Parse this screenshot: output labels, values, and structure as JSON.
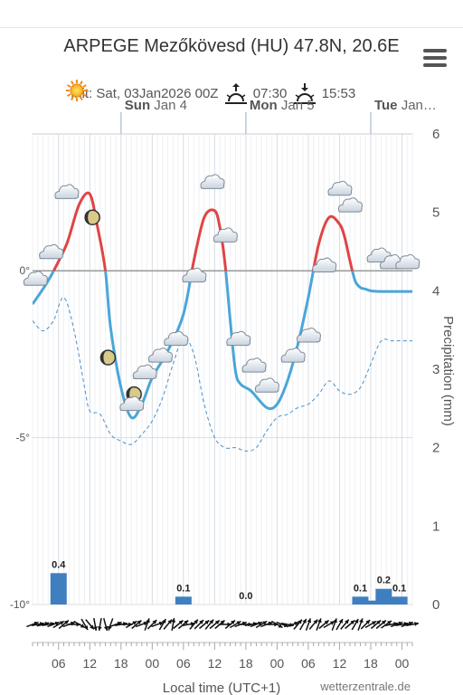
{
  "header": {
    "title": "ARPEGE Mezőkövesd (HU) 47.8N, 20.6E",
    "init": "Init: Sat, 03Jan2026 00Z",
    "sunrise": "07:30",
    "sunset": "15:53"
  },
  "footer": {
    "xlabel": "Local time (UTC+1)",
    "credit": "wetterzentrale.de"
  },
  "chart_data": {
    "type": "line",
    "title": "ARPEGE Mezőkövesd (HU) 47.8N, 20.6E",
    "xlabel": "Local time (UTC+1)",
    "ylabel_right": "Precipitation (mm)",
    "x_tick_labels": [
      "06",
      "12",
      "18",
      "00",
      "06",
      "12",
      "18",
      "00",
      "06",
      "12",
      "18",
      "00"
    ],
    "x_ticks_hours": [
      6,
      12,
      18,
      24,
      30,
      36,
      42,
      48,
      54,
      60,
      66,
      72
    ],
    "xlim_hours": [
      1,
      74
    ],
    "day_labels": [
      {
        "hour": 18,
        "bold": "Sun",
        "rest": "Jan 4"
      },
      {
        "hour": 42,
        "bold": "Mon",
        "rest": "Jan 5"
      },
      {
        "hour": 66,
        "bold": "Tue",
        "rest": "Jan…"
      }
    ],
    "y_left_ticks": [
      {
        "value": 0,
        "label": "0°"
      },
      {
        "value": -5,
        "label": "-5°"
      },
      {
        "value": -10,
        "label": "-10°"
      }
    ],
    "ylim_left": [
      -10,
      4.1
    ],
    "y_right_ticks": [
      "6",
      "5",
      "4",
      "3",
      "2",
      "1",
      "0"
    ],
    "ylim_right": [
      0,
      6
    ],
    "grid": true,
    "series": [
      {
        "kind": "temperature",
        "color_warm": "#e04444",
        "color_cold": "#4aa6d8",
        "x": [
          1,
          4,
          7,
          8,
          10,
          12,
          13.5,
          15,
          16,
          18,
          20,
          22,
          24,
          27,
          30,
          32,
          34,
          36,
          37,
          38,
          39,
          40,
          41,
          43,
          46,
          48,
          50,
          52,
          54,
          56,
          58,
          60,
          61,
          62,
          63,
          64,
          65,
          66,
          68,
          71,
          74
        ],
        "y": [
          -1,
          -0.3,
          0.6,
          1.0,
          2.0,
          2.3,
          1.3,
          0,
          -1.7,
          -3.5,
          -4.4,
          -4.0,
          -3.2,
          -2.4,
          -1.3,
          0.3,
          1.6,
          1.8,
          1.3,
          0.2,
          -1.5,
          -3.0,
          -3.4,
          -3.6,
          -4.1,
          -4.0,
          -3.3,
          -2.2,
          -0.8,
          0.8,
          1.6,
          1.4,
          1.0,
          0.3,
          -0.3,
          -0.5,
          -0.55,
          -0.6,
          -0.62,
          -0.62,
          -0.62
        ]
      },
      {
        "kind": "dewpoint",
        "color": "#4a8fc7",
        "x": [
          1,
          3,
          5,
          7,
          9,
          11,
          12,
          14,
          16,
          18,
          20,
          22,
          24,
          26,
          28,
          30,
          32,
          34,
          36,
          38,
          40,
          42,
          44,
          46,
          48,
          50,
          52,
          54,
          56,
          58,
          60,
          62,
          64,
          66,
          68,
          70,
          71,
          74
        ],
        "y": [
          -1.5,
          -1.8,
          -1.5,
          -0.8,
          -1.8,
          -3.5,
          -4.2,
          -4.3,
          -4.9,
          -5.1,
          -5.2,
          -4.9,
          -4.5,
          -3.8,
          -2.8,
          -2.0,
          -2.5,
          -4.0,
          -5.0,
          -5.3,
          -5.3,
          -5.4,
          -5.3,
          -4.8,
          -4.4,
          -4.3,
          -4.1,
          -4.0,
          -3.7,
          -3.3,
          -3.6,
          -3.7,
          -3.5,
          -2.8,
          -2.1,
          -2.1,
          -2.1,
          -2.1
        ]
      }
    ],
    "precipitation": [
      {
        "hour": 6,
        "value": 0.4,
        "label": "0.4"
      },
      {
        "hour": 30,
        "value": 0.1,
        "label": "0.1"
      },
      {
        "hour": 42,
        "value": 0.0,
        "label": "0.0"
      },
      {
        "hour": 64,
        "value": 0.1,
        "label": "0.1"
      },
      {
        "hour": 66,
        "value": 0.05
      },
      {
        "hour": 68.5,
        "value": 0.2,
        "label": "0.2"
      },
      {
        "hour": 71.5,
        "value": 0.1,
        "label": "0.1"
      }
    ],
    "icons": [
      {
        "hour": 1.5,
        "temp": -0.3,
        "icon": "cloud-icon"
      },
      {
        "hour": 4.5,
        "temp": 0.5,
        "icon": "cloud-icon"
      },
      {
        "hour": 7.5,
        "temp": 2.3,
        "icon": "cloud-icon"
      },
      {
        "hour": 9.5,
        "temp": 5.4,
        "icon": "sun-icon"
      },
      {
        "hour": 12.5,
        "temp": 1.6,
        "icon": "moon-icon"
      },
      {
        "hour": 15.5,
        "temp": -2.6,
        "icon": "moon-icon"
      },
      {
        "hour": 20.5,
        "temp": -3.7,
        "icon": "moon-icon"
      },
      {
        "hour": 20.0,
        "temp": -4.05,
        "icon": "cloud-icon"
      },
      {
        "hour": 22.5,
        "temp": -3.1,
        "icon": "cloud-icon"
      },
      {
        "hour": 25.5,
        "temp": -2.6,
        "icon": "cloud-icon"
      },
      {
        "hour": 28.5,
        "temp": -2.1,
        "icon": "cloud-icon"
      },
      {
        "hour": 32.0,
        "temp": -0.2,
        "icon": "cloud-icon"
      },
      {
        "hour": 35.5,
        "temp": 2.6,
        "icon": "cloud-icon"
      },
      {
        "hour": 38.0,
        "temp": 1.0,
        "icon": "cloud-icon"
      },
      {
        "hour": 40.5,
        "temp": -2.1,
        "icon": "cloud-icon"
      },
      {
        "hour": 43.5,
        "temp": -2.9,
        "icon": "cloud-icon"
      },
      {
        "hour": 46.0,
        "temp": -3.5,
        "icon": "cloud-icon"
      },
      {
        "hour": 51.0,
        "temp": -2.6,
        "icon": "cloud-icon"
      },
      {
        "hour": 54.0,
        "temp": -2.0,
        "icon": "cloud-icon"
      },
      {
        "hour": 57.0,
        "temp": 0.1,
        "icon": "cloud-icon"
      },
      {
        "hour": 60.0,
        "temp": 2.4,
        "icon": "cloud-icon"
      },
      {
        "hour": 62.0,
        "temp": 1.9,
        "icon": "cloud-icon"
      },
      {
        "hour": 67.5,
        "temp": 0.4,
        "icon": "cloud-icon"
      },
      {
        "hour": 70.0,
        "temp": 0.2,
        "icon": "cloud-icon"
      },
      {
        "hour": 73.0,
        "temp": 0.2,
        "icon": "cloud-icon"
      }
    ],
    "wind_direction_deg": [
      250,
      260,
      255,
      260,
      250,
      240,
      230,
      250,
      270,
      300,
      330,
      320,
      350,
      10,
      345,
      20,
      250,
      260,
      270,
      240,
      230,
      250,
      200,
      225,
      250,
      210,
      220,
      190,
      230,
      230,
      260,
      220,
      225,
      230,
      220,
      230,
      230,
      270,
      230,
      240,
      250,
      270,
      260,
      250,
      240,
      250,
      270,
      300,
      290,
      280,
      250,
      220,
      210,
      200,
      220,
      200,
      230,
      240,
      200,
      210,
      220,
      230,
      210,
      200,
      225,
      240,
      230,
      230,
      235,
      260,
      250,
      260,
      250,
      260
    ]
  }
}
